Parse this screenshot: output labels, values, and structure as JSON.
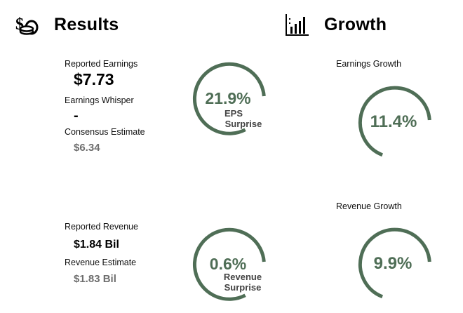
{
  "results": {
    "title": "Results",
    "icon": "money-bag-coins-icon",
    "reported_earnings": {
      "label": "Reported Earnings",
      "value": "$7.73"
    },
    "earnings_whisper": {
      "label": "Earnings Whisper",
      "value": "-"
    },
    "consensus_estimate": {
      "label": "Consensus Estimate",
      "value": "$6.34"
    },
    "reported_revenue": {
      "label": "Reported Revenue",
      "value": "$1.84 Bil"
    },
    "revenue_estimate": {
      "label": "Revenue Estimate",
      "value": "$1.83 Bil"
    },
    "eps_surprise": {
      "value": "21.9%",
      "line1": "EPS",
      "line2": "Surprise"
    },
    "revenue_surprise": {
      "value": "0.6%",
      "line1": "Revenue",
      "line2": "Surprise"
    }
  },
  "growth": {
    "title": "Growth",
    "icon": "bar-chart-icon",
    "earnings_growth": {
      "label": "Earnings Growth",
      "value": "11.4%"
    },
    "revenue_growth": {
      "label": "Revenue Growth",
      "value": "9.9%"
    }
  },
  "colors": {
    "gauge": "#4f6e56",
    "muted_value": "#6e6e6e"
  }
}
